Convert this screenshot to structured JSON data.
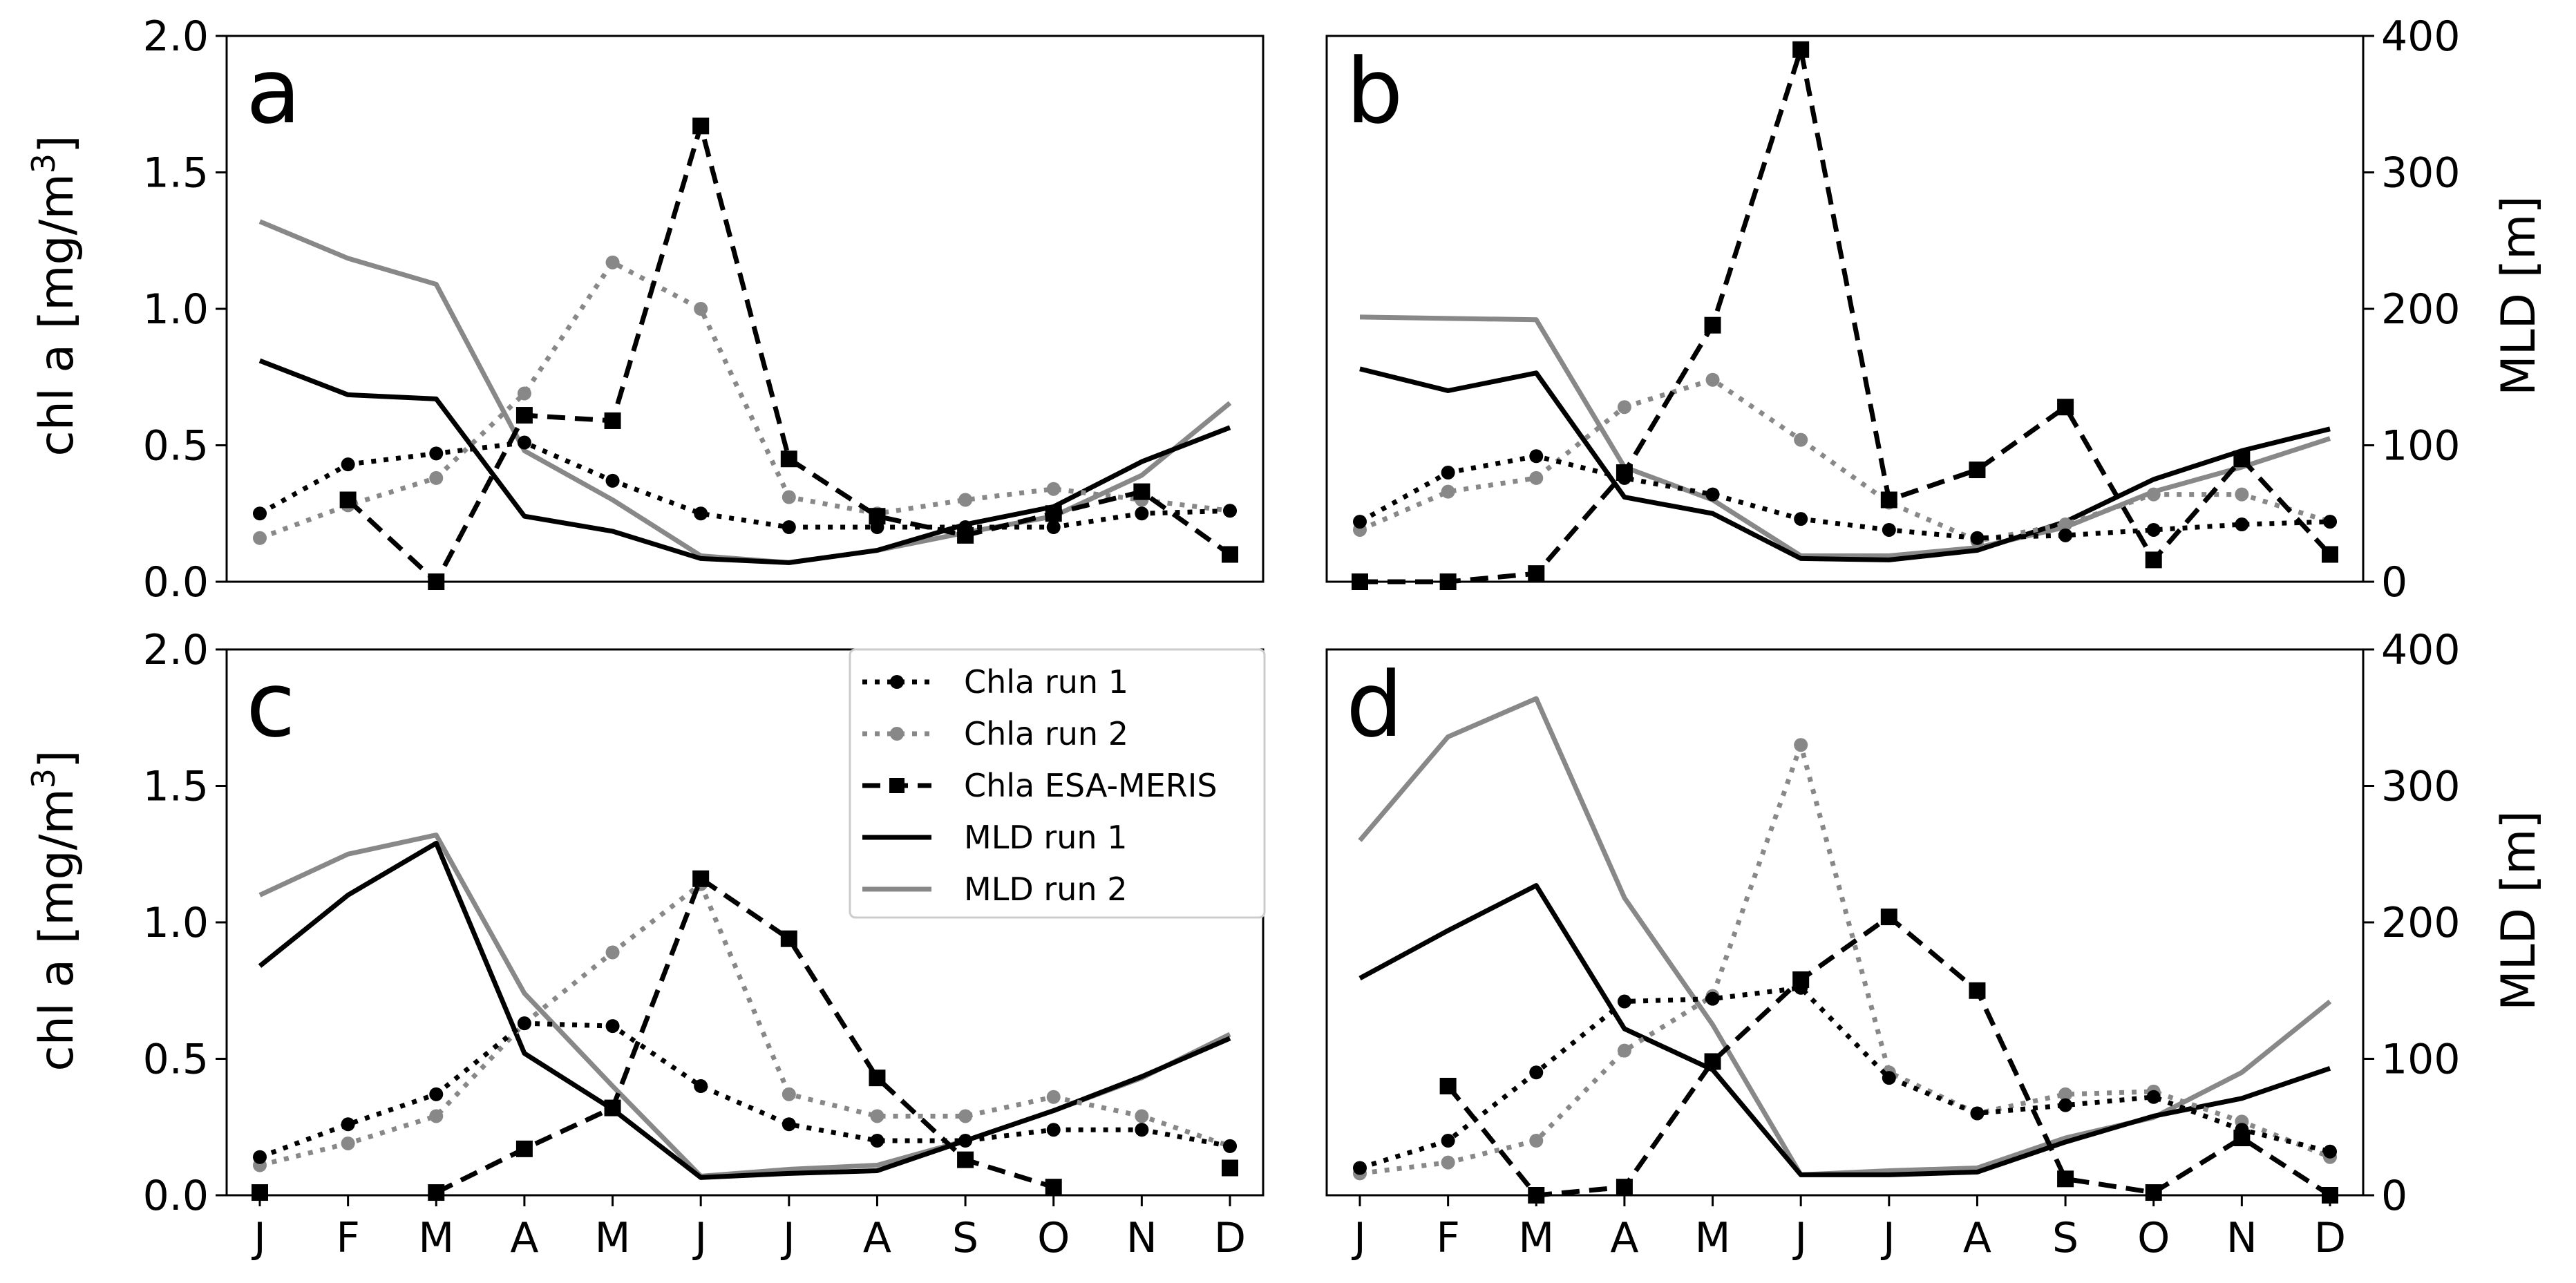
{
  "colors": {
    "run1": "#000000",
    "run2": "#888888",
    "meris": "#000000"
  },
  "legend": [
    {
      "label": "Chla run 1",
      "series": "chla_run1"
    },
    {
      "label": "Chla run 2",
      "series": "chla_run2"
    },
    {
      "label": "Chla ESA-MERIS",
      "series": "chla_meris"
    },
    {
      "label": "MLD run 1",
      "series": "mld_run1"
    },
    {
      "label": "MLD run 2",
      "series": "mld_run2"
    }
  ],
  "axes": {
    "left_label": "chl a [mg/m",
    "left_label_sup": "3",
    "left_label_end": "]",
    "right_label": "MLD [m]",
    "left_ticks": [
      "0.0",
      "0.5",
      "1.0",
      "1.5",
      "2.0"
    ],
    "right_ticks": [
      "0",
      "100",
      "200",
      "300",
      "400"
    ]
  },
  "chart_data": [
    {
      "panel": "a",
      "type": "line",
      "categories": [
        "J",
        "F",
        "M",
        "A",
        "M",
        "J",
        "J",
        "A",
        "S",
        "O",
        "N",
        "D"
      ],
      "ylim_chla": [
        0,
        2.0
      ],
      "ylim_mld": [
        0,
        400
      ],
      "series": [
        {
          "name": "Chla run 1",
          "axis": "chla",
          "values": [
            0.25,
            0.43,
            0.47,
            0.51,
            0.37,
            0.25,
            0.2,
            0.2,
            0.2,
            0.2,
            0.25,
            0.26
          ]
        },
        {
          "name": "Chla run 2",
          "axis": "chla",
          "values": [
            0.16,
            0.28,
            0.38,
            0.69,
            1.17,
            1.0,
            0.31,
            0.25,
            0.3,
            0.34,
            0.3,
            0.26
          ]
        },
        {
          "name": "Chla ESA-MERIS",
          "axis": "chla",
          "values": [
            null,
            0.3,
            0.0,
            0.61,
            0.59,
            1.67,
            0.45,
            0.24,
            0.17,
            0.25,
            0.33,
            0.1
          ]
        },
        {
          "name": "MLD run 1",
          "axis": "mld",
          "values": [
            162,
            137,
            134,
            48,
            37,
            17,
            14,
            23,
            42,
            55,
            88,
            113
          ]
        },
        {
          "name": "MLD run 2",
          "axis": "mld",
          "values": [
            264,
            237,
            218,
            96,
            60,
            19,
            14,
            23,
            36,
            48,
            78,
            131
          ]
        }
      ]
    },
    {
      "panel": "b",
      "type": "line",
      "categories": [
        "J",
        "F",
        "M",
        "A",
        "M",
        "J",
        "J",
        "A",
        "S",
        "O",
        "N",
        "D"
      ],
      "ylim_chla": [
        0,
        2.0
      ],
      "ylim_mld": [
        0,
        400
      ],
      "series": [
        {
          "name": "Chla run 1",
          "axis": "chla",
          "values": [
            0.22,
            0.4,
            0.46,
            0.38,
            0.32,
            0.23,
            0.19,
            0.16,
            0.17,
            0.19,
            0.21,
            0.22
          ]
        },
        {
          "name": "Chla run 2",
          "axis": "chla",
          "values": [
            0.19,
            0.33,
            0.38,
            0.64,
            0.74,
            0.52,
            0.29,
            0.15,
            0.21,
            0.32,
            0.32,
            0.22
          ]
        },
        {
          "name": "Chla ESA-MERIS",
          "axis": "chla",
          "values": [
            0.0,
            0.0,
            0.03,
            0.4,
            0.94,
            1.95,
            0.3,
            0.41,
            0.64,
            0.08,
            0.45,
            0.1
          ]
        },
        {
          "name": "MLD run 1",
          "axis": "mld",
          "values": [
            156,
            140,
            153,
            62,
            50,
            17,
            16,
            23,
            44,
            75,
            96,
            112
          ]
        },
        {
          "name": "MLD run 2",
          "axis": "mld",
          "values": [
            194,
            193,
            192,
            84,
            60,
            19,
            19,
            25,
            40,
            66,
            84,
            105
          ]
        }
      ]
    },
    {
      "panel": "c",
      "type": "line",
      "categories": [
        "J",
        "F",
        "M",
        "A",
        "M",
        "J",
        "J",
        "A",
        "S",
        "O",
        "N",
        "D"
      ],
      "ylim_chla": [
        0,
        2.0
      ],
      "ylim_mld": [
        0,
        400
      ],
      "series": [
        {
          "name": "Chla run 1",
          "axis": "chla",
          "values": [
            0.14,
            0.26,
            0.37,
            0.63,
            0.62,
            0.4,
            0.26,
            0.2,
            0.2,
            0.24,
            0.24,
            0.18
          ]
        },
        {
          "name": "Chla run 2",
          "axis": "chla",
          "values": [
            0.11,
            0.19,
            0.29,
            0.63,
            0.89,
            1.14,
            0.37,
            0.29,
            0.29,
            0.36,
            0.29,
            0.18
          ]
        },
        {
          "name": "Chla ESA-MERIS",
          "axis": "chla",
          "values": [
            0.01,
            null,
            0.01,
            0.17,
            0.32,
            1.16,
            0.94,
            0.43,
            0.13,
            0.03,
            null,
            0.1
          ]
        },
        {
          "name": "MLD run 1",
          "axis": "mld",
          "values": [
            168,
            220,
            258,
            104,
            63,
            13,
            16,
            18,
            40,
            62,
            87,
            115
          ]
        },
        {
          "name": "MLD run 2",
          "axis": "mld",
          "values": [
            220,
            250,
            264,
            148,
            80,
            14,
            19,
            22,
            40,
            62,
            86,
            118
          ]
        }
      ]
    },
    {
      "panel": "d",
      "type": "line",
      "categories": [
        "J",
        "F",
        "M",
        "A",
        "M",
        "J",
        "J",
        "A",
        "S",
        "O",
        "N",
        "D"
      ],
      "ylim_chla": [
        0,
        2.0
      ],
      "ylim_mld": [
        0,
        400
      ],
      "series": [
        {
          "name": "Chla run 1",
          "axis": "chla",
          "values": [
            0.1,
            0.2,
            0.45,
            0.71,
            0.72,
            0.76,
            0.43,
            0.3,
            0.33,
            0.36,
            0.24,
            0.16
          ]
        },
        {
          "name": "Chla run 2",
          "axis": "chla",
          "values": [
            0.08,
            0.12,
            0.2,
            0.53,
            0.73,
            1.65,
            0.45,
            0.3,
            0.37,
            0.38,
            0.27,
            0.14
          ]
        },
        {
          "name": "Chla ESA-MERIS",
          "axis": "chla",
          "values": [
            null,
            0.4,
            0.0,
            0.03,
            0.49,
            0.79,
            1.02,
            0.75,
            0.06,
            0.01,
            0.21,
            0.0
          ]
        },
        {
          "name": "MLD run 1",
          "axis": "mld",
          "values": [
            159,
            194,
            227,
            122,
            92,
            15,
            15,
            17,
            39,
            58,
            71,
            93
          ]
        },
        {
          "name": "MLD run 2",
          "axis": "mld",
          "values": [
            260,
            336,
            364,
            218,
            125,
            15,
            18,
            20,
            42,
            57,
            90,
            142
          ]
        }
      ]
    }
  ]
}
